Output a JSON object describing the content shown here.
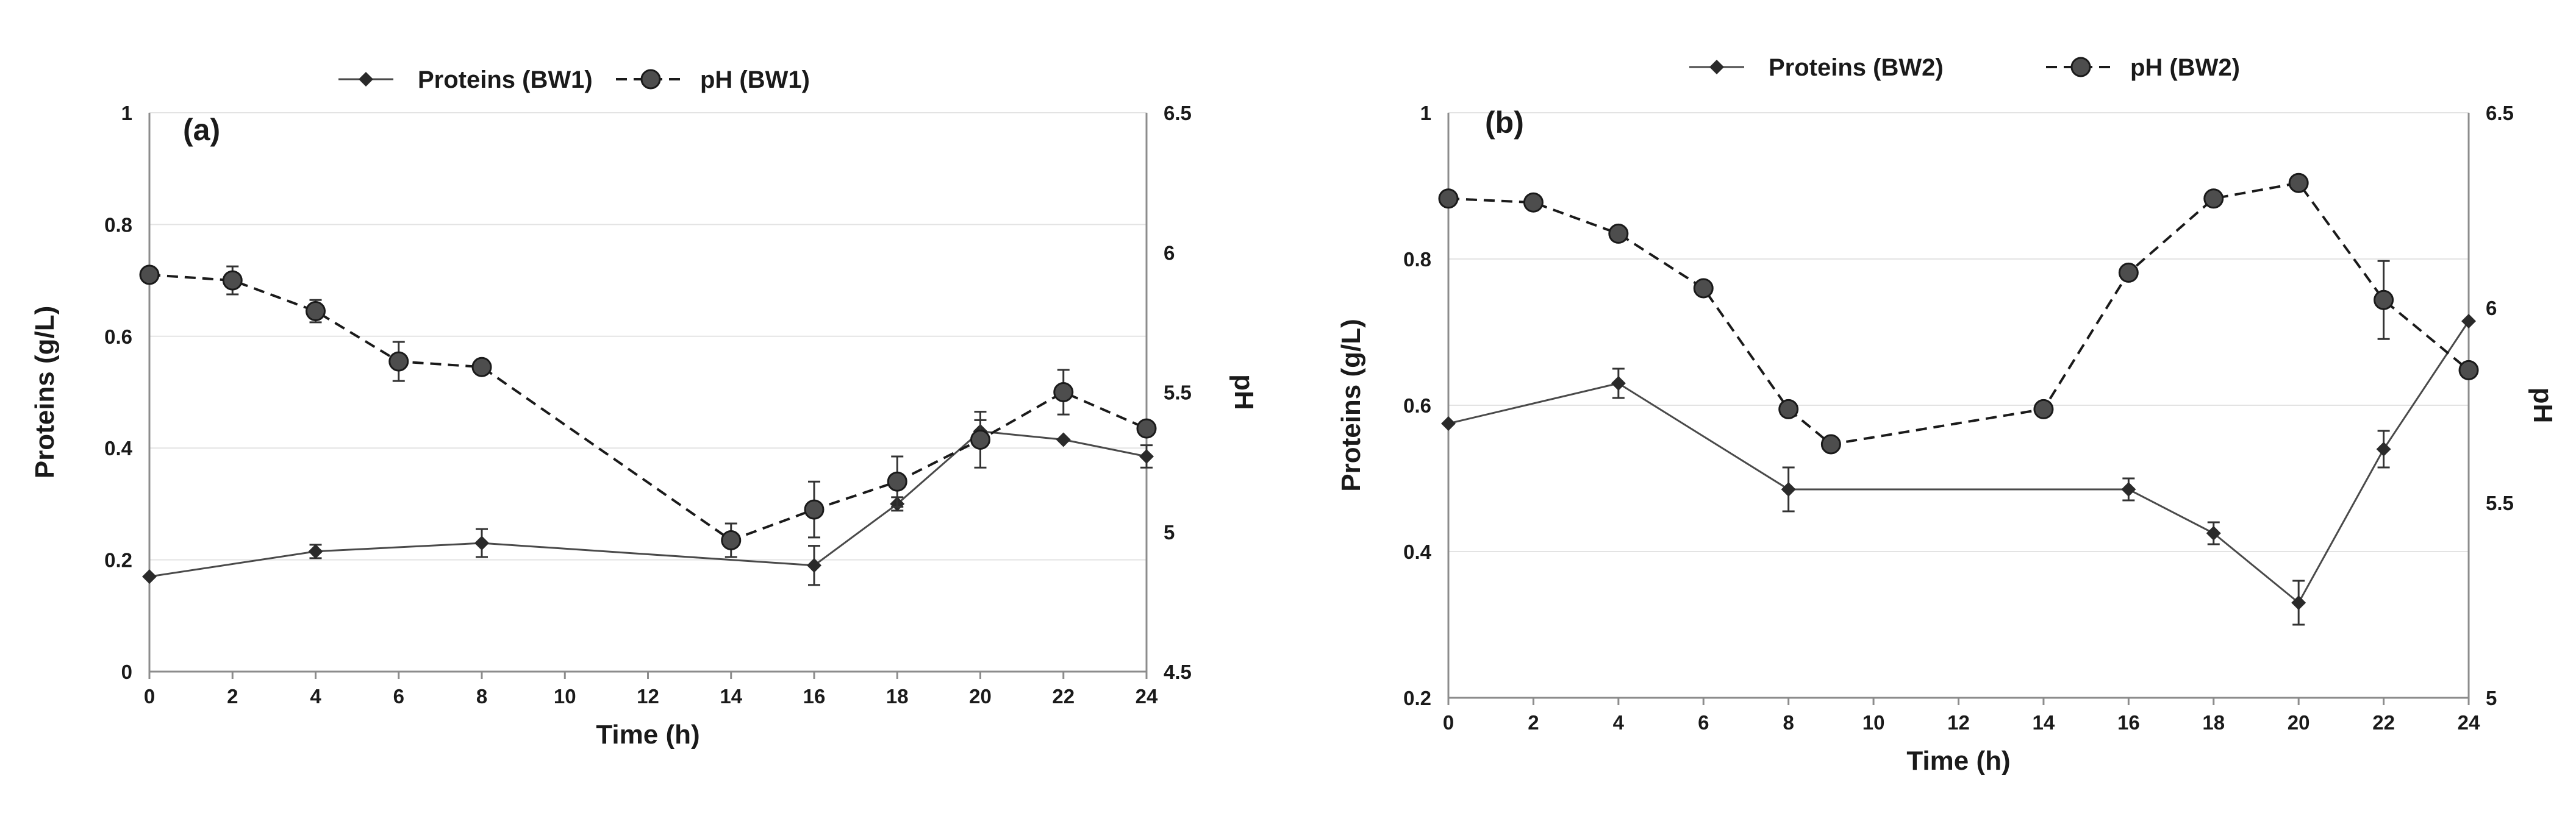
{
  "chart_data": [
    {
      "type": "line",
      "panel_label": "(a)",
      "xlabel": "Time (h)",
      "ylabel": "Proteins (g/L)",
      "y2label": "pH",
      "xlim": [
        0,
        24
      ],
      "ylim": [
        0,
        1
      ],
      "y2lim": [
        4.5,
        6.5
      ],
      "x_ticks": [
        0,
        2,
        4,
        6,
        8,
        10,
        12,
        14,
        16,
        18,
        20,
        22,
        24
      ],
      "y_ticks": [
        0,
        0.2,
        0.4,
        0.6,
        0.8,
        1
      ],
      "y_tick_labels": [
        "0",
        "0.2",
        "0.4",
        "0.6",
        "0.8",
        "1"
      ],
      "y2_ticks": [
        4.5,
        5,
        5.5,
        6,
        6.5
      ],
      "y2_tick_labels": [
        "4.5",
        "5",
        "5.5",
        "6",
        "6.5"
      ],
      "grid": "horizontal",
      "legend_position": "top",
      "series": [
        {
          "name": "Proteins (BW1)",
          "axis": "left",
          "marker": "diamond",
          "linestyle": "solid",
          "x": [
            0,
            4,
            8,
            16,
            18,
            20,
            22,
            24
          ],
          "values": [
            0.17,
            0.215,
            0.23,
            0.19,
            0.3,
            0.43,
            0.415,
            0.385
          ],
          "errors": [
            0,
            0.012,
            0.025,
            0.035,
            0.012,
            0.02,
            0,
            0.02
          ]
        },
        {
          "name": "pH (BW1)",
          "axis": "right",
          "marker": "circle",
          "linestyle": "dashed",
          "x": [
            0,
            2,
            4,
            6,
            8,
            14,
            16,
            18,
            20,
            22,
            24
          ],
          "values": [
            5.92,
            5.9,
            5.79,
            5.61,
            5.59,
            4.97,
            5.08,
            5.18,
            5.33,
            5.5,
            5.37
          ],
          "errors": [
            0,
            0.05,
            0.04,
            0.07,
            0,
            0.06,
            0.1,
            0.09,
            0.1,
            0.08,
            0
          ]
        }
      ]
    },
    {
      "type": "line",
      "panel_label": "(b)",
      "xlabel": "Time (h)",
      "ylabel": "Proteins (g/L)",
      "y2label": "pH",
      "xlim": [
        0,
        24
      ],
      "ylim": [
        0.2,
        1
      ],
      "y2lim": [
        5,
        6.5
      ],
      "x_ticks": [
        0,
        2,
        4,
        6,
        8,
        10,
        12,
        14,
        16,
        18,
        20,
        22,
        24
      ],
      "y_ticks": [
        0.2,
        0.4,
        0.6,
        0.8,
        1
      ],
      "y_tick_labels": [
        "0.2",
        "0.4",
        "0.6",
        "0.8",
        "1"
      ],
      "y2_ticks": [
        5,
        5.5,
        6,
        6.5
      ],
      "y2_tick_labels": [
        "5",
        "5.5",
        "6",
        "6.5"
      ],
      "grid": "horizontal",
      "legend_position": "top",
      "series": [
        {
          "name": "Proteins (BW2)",
          "axis": "left",
          "marker": "diamond",
          "linestyle": "solid",
          "x": [
            0,
            4,
            8,
            16,
            18,
            20,
            22,
            24
          ],
          "values": [
            0.575,
            0.63,
            0.485,
            0.485,
            0.425,
            0.33,
            0.54,
            0.715
          ],
          "errors": [
            0,
            0.02,
            0.03,
            0.015,
            0.015,
            0.03,
            0.025,
            0
          ]
        },
        {
          "name": "pH (BW2)",
          "axis": "right",
          "marker": "circle",
          "linestyle": "dashed",
          "x": [
            0,
            2,
            4,
            6,
            8,
            9,
            14,
            16,
            18,
            20,
            22,
            24
          ],
          "values": [
            6.28,
            6.27,
            6.19,
            6.05,
            5.74,
            5.65,
            5.74,
            6.09,
            6.28,
            6.32,
            6.02,
            5.84
          ],
          "errors": [
            0,
            0,
            0,
            0,
            0,
            0,
            0,
            0,
            0,
            0,
            0.1,
            0
          ]
        }
      ]
    }
  ]
}
